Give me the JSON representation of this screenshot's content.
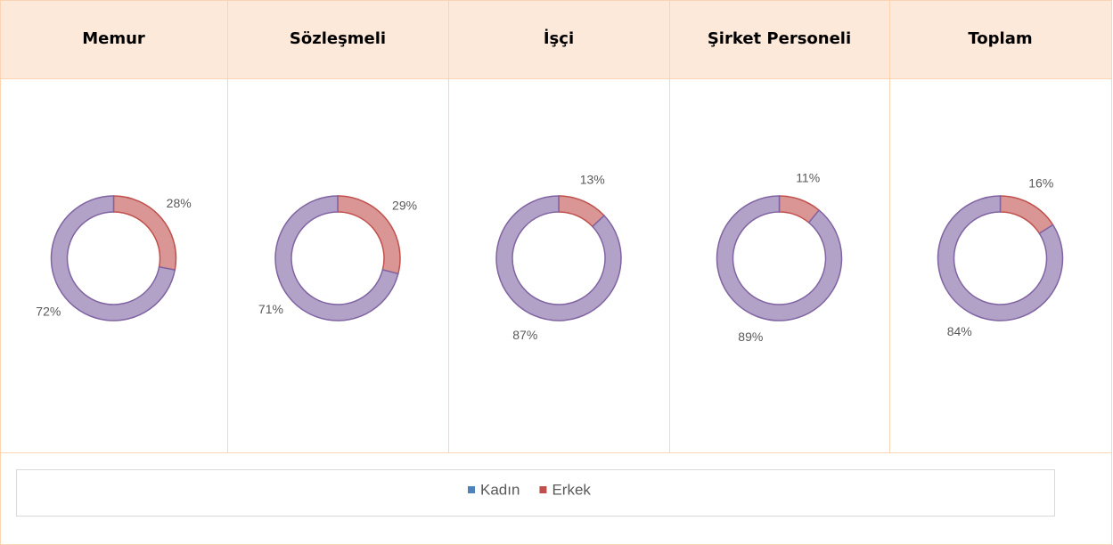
{
  "chart_data": [
    {
      "type": "donut",
      "title": "Memur",
      "categories": [
        "Kadın",
        "Erkek"
      ],
      "values": [
        72,
        28
      ],
      "value_labels": [
        "72%",
        "28%"
      ],
      "colors": [
        "#b3a2c7",
        "#d99694"
      ],
      "stroke_colors": [
        "#8064a2",
        "#c0504d"
      ],
      "legend_colors": [
        "#4f81bd",
        "#c0504d"
      ]
    },
    {
      "type": "donut",
      "title": "Sözleşmeli",
      "categories": [
        "Kadın",
        "Erkek"
      ],
      "values": [
        71,
        29
      ],
      "value_labels": [
        "71%",
        "29%"
      ],
      "colors": [
        "#b3a2c7",
        "#d99694"
      ],
      "stroke_colors": [
        "#8064a2",
        "#c0504d"
      ]
    },
    {
      "type": "donut",
      "title": "İşçi",
      "categories": [
        "Kadın",
        "Erkek"
      ],
      "values": [
        87,
        13
      ],
      "value_labels": [
        "87%",
        "13%"
      ],
      "colors": [
        "#b3a2c7",
        "#d99694"
      ],
      "stroke_colors": [
        "#8064a2",
        "#c0504d"
      ]
    },
    {
      "type": "donut",
      "title": "Şirket Personeli",
      "categories": [
        "Kadın",
        "Erkek"
      ],
      "values": [
        89,
        11
      ],
      "value_labels": [
        "89%",
        "11%"
      ],
      "colors": [
        "#b3a2c7",
        "#d99694"
      ],
      "stroke_colors": [
        "#8064a2",
        "#c0504d"
      ]
    },
    {
      "type": "donut",
      "title": "Toplam",
      "categories": [
        "Kadın",
        "Erkek"
      ],
      "values": [
        84,
        16
      ],
      "value_labels": [
        "84%",
        "16%"
      ],
      "colors": [
        "#b3a2c7",
        "#d99694"
      ],
      "stroke_colors": [
        "#8064a2",
        "#c0504d"
      ]
    }
  ]
}
